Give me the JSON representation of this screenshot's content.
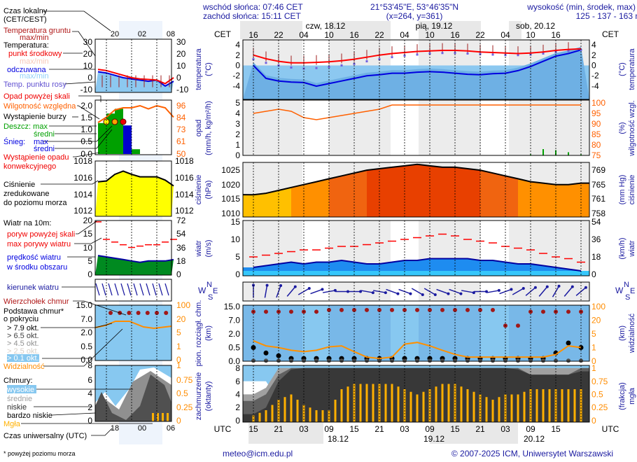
{
  "header": {
    "sunrise": "wschód słońca: 07:46 CET",
    "sunset": "zachód słońca: 15:11 CET",
    "coords": "21°53'45\"E, 53°46'35\"N",
    "grid": "(x=264,  y=361)",
    "elev_label": "wysokość (min, środek, max)",
    "elev_values": "125 - 137 - 163 m"
  },
  "time_axis": {
    "cet_label": "CET",
    "utc_label": "UTC",
    "cet_hours": [
      "16",
      "22",
      "04",
      "10",
      "16",
      "22",
      "04",
      "10",
      "16",
      "22",
      "04",
      "10",
      "16"
    ],
    "utc_hours": [
      "15",
      "21",
      "03",
      "09",
      "15",
      "21",
      "03",
      "09",
      "15",
      "21",
      "03",
      "09",
      "15"
    ],
    "days_top": [
      "czw, 18.12",
      "pią, 19.12",
      "sob, 20.12"
    ],
    "days_bottom": [
      "18.12",
      "19.12",
      "20.12"
    ]
  },
  "axes": {
    "temp": {
      "title": "temperatura",
      "unit": "(°C)",
      "ticks": [
        "4",
        "2",
        "0",
        "-2",
        "-4"
      ]
    },
    "precip": {
      "title": "opad",
      "unit": "(mm/h, kg/m²/h)",
      "ticks": [
        "5",
        "4",
        "3",
        "2",
        "1",
        "0"
      ],
      "right_title": "wilgotność wzgl.",
      "right_unit": "(%)",
      "right_ticks": [
        "100",
        "95",
        "90",
        "85",
        "80",
        "75"
      ]
    },
    "pressure": {
      "title": "ciśnienie",
      "unit": "(hPa)",
      "ticks": [
        "1025",
        "1020",
        "1015",
        "1010"
      ],
      "right_title": "ciśnienie",
      "right_unit": "(mm Hg)",
      "right_ticks": [
        "769",
        "765",
        "761",
        "758"
      ]
    },
    "wind": {
      "title": "wiatr",
      "unit": "(m/s)",
      "ticks": [
        "15",
        "10",
        "5",
        "0"
      ],
      "right_title": "wiatr",
      "right_unit": "(km/h)",
      "right_ticks": [
        "54",
        "36",
        "18",
        "0"
      ]
    },
    "wind_dir": {
      "n": "N",
      "w": "W",
      "s": "S",
      "e": "E"
    },
    "cloud_base": {
      "title": "pion. rozciągł. chm.",
      "unit": "(km)",
      "ticks": [
        "15.0",
        "7.0",
        "2.0",
        "0.5",
        "0.0"
      ],
      "right_title": "widzialność",
      "right_unit": "(km)",
      "right_ticks": [
        "100",
        "20",
        "5",
        "1",
        "0"
      ]
    },
    "clouds": {
      "title": "zachmurzenie",
      "unit": "(oktanty)",
      "ticks": [
        "8",
        "6",
        "4",
        "2",
        "0"
      ],
      "right_title": "mgła",
      "right_unit": "(frakcja)",
      "right_ticks": [
        "1",
        "0.75",
        "0.5",
        "0.25",
        "0"
      ]
    }
  },
  "legend": {
    "local_time": "Czas lokalny",
    "local_time_zone": "(CET/CEST)",
    "local_hours": [
      "20",
      "02",
      "08"
    ],
    "utc_time": "Czas uniwersalny (UTC)",
    "utc_hours": [
      "18",
      "00",
      "06"
    ],
    "ground_temp": "Temperatura gruntu",
    "ground_temp_mm": "max/min",
    "temperature": "Temperatura:",
    "mid_point": "punkt środkowy",
    "mid_mm": "max/min",
    "perceived": "odczuwana",
    "perceived_mm": "max/min",
    "dew_point": "Temp. punktu rosy",
    "temp_ticks": [
      "30",
      "20",
      "10",
      "0",
      "-10"
    ],
    "precip_over": "Opad powyżej skali",
    "humidity": "Wilgotność względna",
    "storm": "Wystąpienie burzy",
    "rain": "Deszcz: max",
    "rain_avg": "średni",
    "snow": "Śnieg:",
    "snow_max": "max",
    "snow_avg": "średni",
    "convective": "Wystąpienie opadu",
    "convective2": "konwekcyjnego",
    "precip_ticks": [
      "2.0",
      "1.5",
      "1.0",
      "0.5",
      "0.0"
    ],
    "hum_ticks": [
      "96",
      "84",
      "73",
      "61",
      "50"
    ],
    "pressure1": "Ciśnienie",
    "pressure2": "zredukowane",
    "pressure3": "do poziomu morza",
    "pres_ticks": [
      "1018",
      "1016",
      "1014",
      "1012"
    ],
    "wind_title": "Wiatr na 10m:",
    "gust_over": "poryw powyżej skali",
    "gust_max": "max porywy wiatru",
    "wind_speed": "prędkość wiatru",
    "wind_speed2": "w środku obszaru",
    "wind_ticks": [
      "20",
      "15",
      "10",
      "5",
      "0"
    ],
    "wind_ticks_r": [
      "72",
      "54",
      "36",
      "18",
      "0"
    ],
    "wind_dir": "kierunek wiatru",
    "cloud_top": "Wierzchołek chmur",
    "cloud_base": "Podstawa chmur*",
    "cloud_base2": "o pokryciu",
    "okt": [
      "> 7.9 okt.",
      "> 6.5 okt.",
      "> 4.5 okt.",
      "> 2.5 okt.",
      "> 0.1 okt."
    ],
    "visibility": "Widzialność",
    "cb_ticks": [
      "15.0",
      "7.0",
      "2.0",
      "0.5",
      "0.0"
    ],
    "vis_ticks": [
      "100",
      "20",
      "5",
      "1",
      "0"
    ],
    "clouds": "Chmury:",
    "high": "wysokie",
    "mid": "średnie",
    "low": "niskie",
    "very_low": "bardzo niskie",
    "fog": "Mgła",
    "cl_ticks": [
      "8",
      "6",
      "4",
      "2",
      "0"
    ],
    "fog_ticks": [
      "1",
      "0.75",
      "0.5",
      "0.25",
      "0"
    ]
  },
  "footer": {
    "note": "* powyżej poziomu morza",
    "email": "meteo@icm.edu.pl",
    "copyright": "© 2007-2025 ICM, Uniwersytet Warszawski"
  },
  "colors": {
    "temperature": "#ff0000",
    "perceived": "#0000e0",
    "dew_point": "#7060e0",
    "humidity": "#ff6000",
    "rain": "#00a000",
    "snow": "#0000d0",
    "gust": "#ff0000",
    "wind": "#0000a0",
    "visibility": "#ff9000",
    "cloud_top": "#a01818",
    "fog": "#ffb000",
    "sky": "#87c8f0"
  },
  "chart_data": {
    "type": "line",
    "x_unit": "hours from 17.12 15 UTC",
    "x": [
      0,
      3,
      6,
      9,
      12,
      15,
      18,
      21,
      24,
      27,
      30,
      33,
      36,
      39,
      42,
      45,
      48,
      51,
      54,
      57,
      60,
      63,
      66,
      69,
      72,
      75,
      78
    ],
    "series": [
      {
        "name": "punkt środkowy",
        "panel": "temp",
        "values": [
          2,
          1.3,
          0.8,
          0.5,
          0.5,
          0.6,
          0.7,
          0.9,
          1.2,
          1.6,
          2.0,
          2.3,
          2.5,
          2.7,
          2.8,
          2.9,
          2.9,
          2.8,
          2.6,
          2.5,
          2.4,
          2.3,
          2.4,
          2.6,
          2.9,
          3.1,
          3.2
        ]
      },
      {
        "name": "odczuwana",
        "panel": "temp",
        "values": [
          0,
          -2.5,
          -3,
          -3.2,
          -3.3,
          -4,
          -3.5,
          -3,
          -2.5,
          -2,
          -1.8,
          -1.5,
          -1.5,
          -1.3,
          -1.2,
          -1.3,
          -1.5,
          -1.7,
          -1.8,
          -1.6,
          -1.5,
          -1,
          -0.2,
          0.8,
          1.8,
          2.3,
          3
        ]
      },
      {
        "name": "Temp. punktu rosy",
        "panel": "temp",
        "values": [
          1.2,
          0.5,
          0,
          -0.4,
          -0.6,
          -0.5,
          -0.3,
          0,
          0.3,
          0.8,
          1.2,
          1.6,
          1.9,
          2.1,
          2.3,
          2.4,
          2.4,
          2.3,
          2.2,
          2.1,
          2.0,
          2.0,
          2.1,
          2.3,
          2.6,
          2.8,
          3.0
        ]
      },
      {
        "name": "Wilgotność względna",
        "panel": "precip",
        "values": [
          95,
          96,
          97,
          96,
          93,
          92,
          93,
          94,
          95,
          96,
          97,
          99,
          99,
          99,
          99,
          99,
          99,
          99,
          99,
          99,
          99,
          99,
          99,
          99,
          99,
          99,
          99
        ]
      },
      {
        "name": "Deszcz: max",
        "panel": "precip",
        "values": [
          0,
          0,
          0,
          0,
          0,
          0,
          0,
          0,
          0,
          0,
          0,
          0,
          0,
          0,
          0,
          0,
          0,
          0,
          0,
          0,
          0,
          0,
          0.1,
          0.6,
          0.5,
          0.3,
          0.1
        ]
      },
      {
        "name": "Ciśnienie",
        "panel": "pressure",
        "values": [
          1016.5,
          1017,
          1018,
          1019,
          1020,
          1021,
          1022,
          1023,
          1024,
          1025,
          1025.5,
          1026,
          1026.5,
          1027,
          1026.5,
          1026,
          1026,
          1025.5,
          1025,
          1024,
          1023,
          1022,
          1021,
          1020.5,
          1020,
          1020,
          1020.5
        ]
      },
      {
        "name": "prędkość wiatru",
        "panel": "wind",
        "values": [
          2,
          2.5,
          3,
          3.5,
          3,
          3.5,
          3.5,
          4,
          3.5,
          3,
          3,
          3.5,
          4,
          4,
          4.5,
          4.5,
          4.5,
          4.5,
          4,
          4,
          3.5,
          3,
          3,
          2.5,
          2,
          1.5,
          1
        ]
      },
      {
        "name": "max porywy wiatru",
        "panel": "wind",
        "values": [
          5,
          5.5,
          6,
          6.5,
          7,
          7,
          7.5,
          8,
          8,
          8.5,
          9,
          9.5,
          10,
          10.5,
          11,
          11.5,
          11,
          10,
          9.5,
          9,
          8,
          7.5,
          7,
          6,
          5,
          4.5,
          3.5
        ]
      },
      {
        "name": "kierunek wiatru",
        "panel": "wind_dir",
        "values": [
          180,
          190,
          200,
          220,
          240,
          250,
          260,
          270,
          270,
          280,
          280,
          290,
          290,
          300,
          300,
          290,
          290,
          280,
          270,
          260,
          250,
          240,
          230,
          220,
          210,
          220,
          230
        ]
      },
      {
        "name": "Wierzchołek chmur",
        "panel": "cloud_base",
        "values": [
          12,
          12,
          12,
          12,
          12,
          12,
          13,
          13,
          13,
          13,
          13,
          13,
          13,
          13,
          13,
          13,
          13,
          13,
          13,
          13,
          5,
          5,
          12,
          12,
          12,
          12,
          12
        ]
      },
      {
        "name": "> 7.9 okt.",
        "panel": "cloud_base",
        "values": [
          0.5,
          0.3,
          0.2,
          0.1,
          0.1,
          0.1,
          0.1,
          0.1,
          0.1,
          0.1,
          0.1,
          0.1,
          0.1,
          0.1,
          0.1,
          0.1,
          0.1,
          0.1,
          0.1,
          0.1,
          0.1,
          0.1,
          0.1,
          0.1,
          0.3,
          1,
          0.5
        ]
      },
      {
        "name": "Widzialność",
        "panel": "cloud_base",
        "values": [
          3,
          1.5,
          1,
          0.8,
          0.7,
          0.8,
          1.2,
          1.5,
          0.7,
          0.3,
          0.2,
          0.3,
          2,
          2.5,
          1.5,
          0.8,
          0.5,
          0.3,
          0.3,
          0.3,
          0.3,
          0.3,
          0.3,
          0.3,
          0.5,
          1.5,
          1
        ]
      },
      {
        "name": "wysokie",
        "panel": "clouds",
        "values": [
          6,
          6,
          3,
          0,
          0,
          0,
          0,
          0,
          0,
          0,
          0,
          0,
          0,
          0,
          0,
          0,
          0,
          0,
          0,
          0,
          0,
          0,
          0,
          0,
          0,
          0,
          0
        ]
      },
      {
        "name": "średnie",
        "panel": "clouds",
        "values": [
          4,
          5,
          8,
          8,
          8,
          8,
          8,
          8,
          8,
          8,
          8,
          8,
          8,
          8,
          8,
          8,
          8,
          8,
          8,
          8,
          8,
          8,
          8,
          8,
          8,
          8,
          8
        ]
      },
      {
        "name": "niskie",
        "panel": "clouds",
        "values": [
          3,
          4,
          7,
          8,
          8,
          8,
          8,
          8,
          8,
          8,
          8,
          8,
          8,
          8,
          8,
          8,
          8,
          8,
          8,
          8,
          8,
          8,
          7,
          7,
          7,
          7,
          8
        ]
      },
      {
        "name": "bardzo niskie",
        "panel": "clouds",
        "values": [
          1,
          2,
          6,
          7.8,
          8,
          8,
          8,
          8,
          8,
          8,
          8,
          8,
          8,
          8,
          8,
          8,
          8,
          8,
          8,
          8,
          8,
          7.8,
          7,
          7,
          7,
          7,
          7.5
        ]
      },
      {
        "name": "Mgła",
        "panel": "clouds",
        "values": [
          0.1,
          0.2,
          0.4,
          0.5,
          0.3,
          0.2,
          0.2,
          0.6,
          0.7,
          0.7,
          0.7,
          0.7,
          0.6,
          0.5,
          0.6,
          0.7,
          0.7,
          0.6,
          0.5,
          0.4,
          0.5,
          0.5,
          0.6,
          0.6,
          0.6,
          0.6,
          0.6
        ]
      }
    ],
    "legend_example": {
      "x": [
        -4,
        -2,
        0,
        2,
        4,
        6,
        8,
        10,
        12,
        14
      ],
      "temp": [
        7,
        6,
        4,
        2,
        0,
        -1,
        -1.5,
        -2,
        -5,
        0
      ],
      "perceived": [
        5,
        4,
        2,
        0,
        -1,
        -2,
        -3,
        -2,
        -7,
        -3
      ],
      "humidity": [
        80,
        85,
        92,
        94,
        94,
        96,
        93,
        96,
        94,
        85
      ],
      "pressure": [
        1015.5,
        1015.6,
        1016.4,
        1016.8,
        1016.4,
        1016.1,
        1016.1,
        1016.1,
        1015.7,
        1015.0
      ],
      "wind": [
        7,
        6.5,
        6,
        5.5,
        5,
        4.5,
        5,
        5,
        5,
        5.5
      ],
      "gust": [
        20,
        13,
        12,
        11,
        10,
        10.5,
        11,
        11,
        12,
        13
      ]
    }
  }
}
